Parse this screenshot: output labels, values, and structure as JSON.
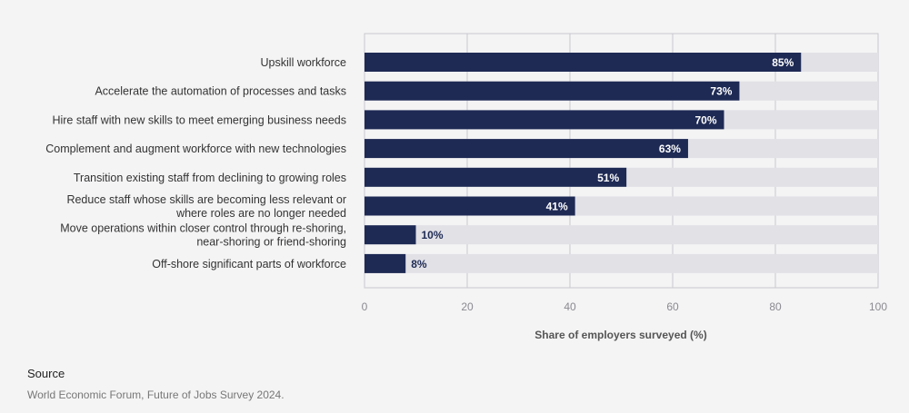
{
  "chart_data": {
    "type": "bar",
    "orientation": "horizontal",
    "categories": [
      [
        "Upskill workforce"
      ],
      [
        "Accelerate the automation of processes and tasks"
      ],
      [
        "Hire staff with new skills to meet emerging business needs"
      ],
      [
        "Complement and augment workforce with new technologies"
      ],
      [
        "Transition existing staff from declining to growing roles"
      ],
      [
        "Reduce staff whose skills are becoming less relevant or",
        "where roles are no longer needed"
      ],
      [
        "Move operations within closer control through re-shoring,",
        "near-shoring or friend-shoring"
      ],
      [
        "Off-shore significant parts of workforce"
      ]
    ],
    "values": [
      85,
      73,
      70,
      63,
      51,
      41,
      10,
      8
    ],
    "data_labels": [
      "85%",
      "73%",
      "70%",
      "63%",
      "51%",
      "41%",
      "10%",
      "8%"
    ],
    "xlabel": "Share of employers surveyed (%)",
    "xlim": [
      0,
      100
    ],
    "xticks": [
      0,
      20,
      40,
      60,
      80,
      100
    ],
    "grid": true,
    "colors": {
      "bar": "#1e2a54",
      "track": "#e1e1e6",
      "label_inside": "#ffffff",
      "label_outside": "#1e2a54",
      "grid": "#c9c9ce"
    }
  },
  "source": {
    "title": "Source",
    "text": "World Economic Forum, Future of Jobs Survey 2024."
  }
}
